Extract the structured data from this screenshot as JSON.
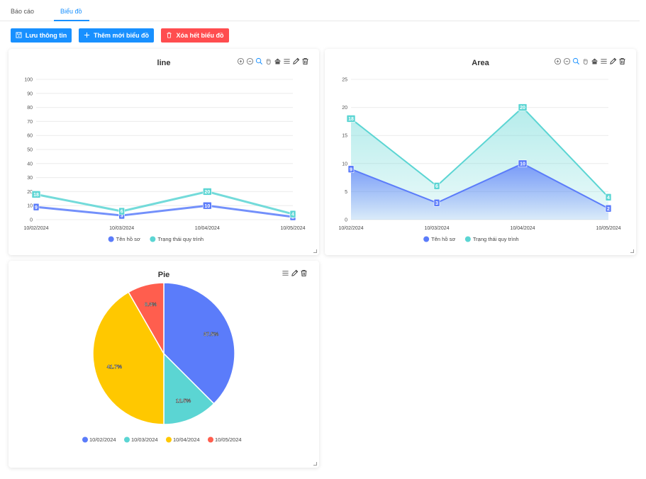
{
  "tabs": [
    {
      "label": "Báo cáo",
      "active": false
    },
    {
      "label": "Biểu đồ",
      "active": true
    }
  ],
  "toolbar": {
    "save_label": "Lưu thông tin",
    "add_label": "Thêm mới biểu đồ",
    "clear_label": "Xóa hết biểu đồ"
  },
  "colors": {
    "accent": "#1890ff",
    "danger": "#ff4d4f",
    "series1": "#5b7cfa",
    "series2": "#5bd5d3",
    "pie3": "#ffc800",
    "pie4": "#ff5e4e"
  },
  "chart_data": [
    {
      "type": "line",
      "title": "line",
      "categories": [
        "10/02/2024",
        "10/03/2024",
        "10/04/2024",
        "10/05/2024"
      ],
      "series": [
        {
          "name": "Tên hồ sơ",
          "values": [
            9,
            3,
            10,
            2
          ]
        },
        {
          "name": "Trạng thái quy trình",
          "values": [
            18,
            6,
            20,
            4
          ]
        }
      ],
      "yticks": [
        0,
        10,
        20,
        30,
        40,
        50,
        60,
        70,
        80,
        90,
        100
      ],
      "ylim": [
        0,
        100
      ],
      "grid": true,
      "legend": "bottom"
    },
    {
      "type": "area",
      "title": "Area",
      "categories": [
        "10/02/2024",
        "10/03/2024",
        "10/04/2024",
        "10/05/2024"
      ],
      "series": [
        {
          "name": "Tên hồ sơ",
          "values": [
            9,
            3,
            10,
            2
          ]
        },
        {
          "name": "Trạng thái quy trình",
          "values": [
            18,
            6,
            20,
            4
          ]
        }
      ],
      "yticks": [
        0,
        5,
        10,
        15,
        20,
        25
      ],
      "ylim": [
        0,
        25
      ],
      "grid": true,
      "legend": "bottom"
    },
    {
      "type": "pie",
      "title": "Pie",
      "categories": [
        "10/02/2024",
        "10/03/2024",
        "10/04/2024",
        "10/05/2024"
      ],
      "values": [
        37.5,
        12.5,
        41.7,
        8.3
      ],
      "labels": [
        "37.5%",
        "12.5%",
        "41.7%",
        "8.3%"
      ],
      "legend": "bottom"
    }
  ]
}
